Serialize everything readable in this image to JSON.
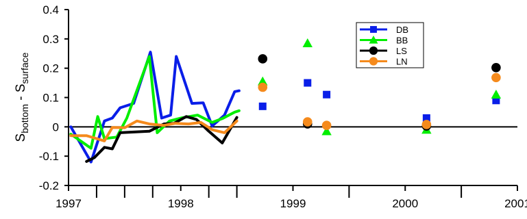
{
  "chart_data": {
    "type": "line",
    "title": "",
    "xlabel": "",
    "ylabel": {
      "main": "S",
      "sub1": "bottom",
      "mid": " - S",
      "sub2": "surface"
    },
    "xlim": [
      1997.0,
      2001.0
    ],
    "ylim": [
      -0.2,
      0.4
    ],
    "x_ticks": [
      {
        "value": 1997,
        "label": "1997"
      },
      {
        "value": 1998,
        "label": "1998"
      },
      {
        "value": 1999,
        "label": "1999"
      },
      {
        "value": 2000,
        "label": "2000"
      },
      {
        "value": 2001,
        "label": "2001"
      }
    ],
    "x_minor_ticks": [
      1997.25,
      1997.5,
      1997.75,
      1998.25,
      1998.5,
      1999.5,
      2000.5
    ],
    "y_ticks": [
      {
        "value": -0.2,
        "label": "-0.2"
      },
      {
        "value": -0.1,
        "label": "-0.1"
      },
      {
        "value": 0,
        "label": "0"
      },
      {
        "value": 0.1,
        "label": "0.1"
      },
      {
        "value": 0.2,
        "label": "0.2"
      },
      {
        "value": 0.3,
        "label": "0.3"
      },
      {
        "value": 0.4,
        "label": "0.4"
      }
    ],
    "zero_line": true,
    "grid": false,
    "legend_position": "top-right",
    "series": [
      {
        "name": "DB",
        "color": "#0a1ee8",
        "marker": "square",
        "line_x": [
          1997.02,
          1997.2,
          1997.32,
          1997.39,
          1997.46,
          1997.58,
          1997.73,
          1997.83,
          1997.91,
          1997.96,
          1998.1,
          1998.2,
          1998.28,
          1998.39,
          1998.48,
          1998.52
        ],
        "line_y": [
          0.0,
          -0.12,
          0.02,
          0.03,
          0.065,
          0.08,
          0.255,
          0.03,
          0.04,
          0.24,
          0.08,
          0.082,
          0.003,
          0.04,
          0.12,
          0.123
        ],
        "points_x": [
          1998.73,
          1999.13,
          1999.3,
          2000.19,
          2000.81
        ],
        "points_y": [
          0.07,
          0.15,
          0.11,
          0.03,
          0.09
        ]
      },
      {
        "name": "BB",
        "color": "#00ee00",
        "marker": "triangle",
        "line_x": [
          1997.02,
          1997.2,
          1997.26,
          1997.32,
          1997.43,
          1997.52,
          1997.72,
          1997.79,
          1997.9,
          1998.0,
          1998.15,
          1998.28,
          1998.37,
          1998.48,
          1998.52
        ],
        "line_y": [
          -0.025,
          -0.073,
          0.035,
          -0.04,
          -0.035,
          0.03,
          0.24,
          -0.02,
          0.02,
          0.03,
          0.04,
          0.015,
          0.028,
          0.05,
          0.055
        ],
        "points_x": [
          1998.73,
          1999.13,
          1999.3,
          2000.19,
          2000.81
        ],
        "points_y": [
          0.155,
          0.285,
          -0.015,
          -0.01,
          0.11
        ]
      },
      {
        "name": "LS",
        "color": "#000000",
        "marker": "circle",
        "line_x": [
          1997.16,
          1997.23,
          1997.32,
          1997.39,
          1997.46,
          1997.72,
          1997.85,
          1997.94,
          1998.05,
          1998.14,
          1998.25,
          1998.37,
          1998.5
        ],
        "line_y": [
          -0.118,
          -0.105,
          -0.07,
          -0.075,
          -0.02,
          -0.015,
          0.01,
          0.012,
          0.035,
          0.025,
          -0.015,
          -0.055,
          0.032
        ],
        "points_x": [
          1998.73,
          1999.13,
          2000.19,
          2000.81
        ],
        "points_y": [
          0.232,
          0.01,
          0.003,
          0.202
        ]
      },
      {
        "name": "LN",
        "color": "#f58a1c",
        "marker": "circle",
        "line_x": [
          1997.02,
          1997.16,
          1997.32,
          1997.39,
          1997.5,
          1997.61,
          1997.72,
          1997.85,
          1997.95,
          1998.07,
          1998.18,
          1998.28,
          1998.39,
          1998.5
        ],
        "line_y": [
          -0.03,
          -0.03,
          -0.048,
          -0.002,
          -0.003,
          0.02,
          0.01,
          0.005,
          0.012,
          0.01,
          0.015,
          -0.01,
          -0.02,
          0.02
        ],
        "points_x": [
          1998.73,
          1999.13,
          1999.3,
          2000.19,
          2000.81
        ],
        "points_y": [
          0.135,
          0.017,
          0.005,
          0.008,
          0.168
        ]
      }
    ]
  }
}
